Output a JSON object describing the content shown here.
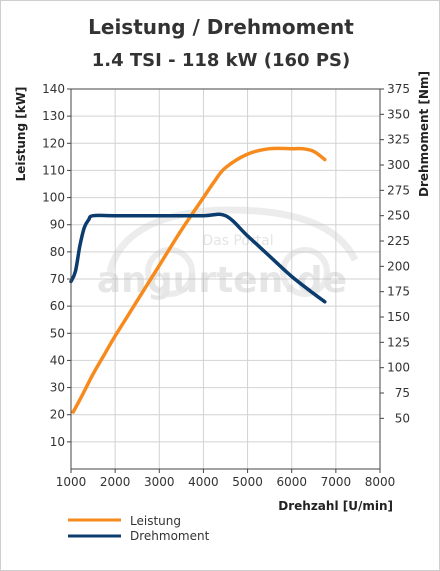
{
  "chart_data": {
    "type": "line",
    "title": "Leistung / Drehmoment",
    "subtitle": "1.4 TSI - 118 kW (160 PS)",
    "xlabel": "Drehzahl [U/min]",
    "ylabel_left": "Leistung [kW]",
    "ylabel_right": "Drehmoment [Nm]",
    "xlim": [
      1000,
      8000
    ],
    "ylim_left": [
      0,
      140
    ],
    "ylim_right": [
      0,
      375
    ],
    "x_ticks": [
      "1000",
      "2000",
      "3000",
      "4000",
      "5000",
      "6000",
      "7000",
      "8000"
    ],
    "y_left_ticks": [
      "10",
      "20",
      "30",
      "40",
      "50",
      "60",
      "70",
      "80",
      "90",
      "100",
      "110",
      "120",
      "130",
      "140"
    ],
    "y_right_ticks": [
      "50",
      "75",
      "100",
      "125",
      "150",
      "175",
      "200",
      "225",
      "250",
      "275",
      "300",
      "325",
      "350",
      "375"
    ],
    "grid": true,
    "legend_position": "bottom-left",
    "series": [
      {
        "name": "Leistung",
        "axis": "left",
        "color": "#f78a1d",
        "x": [
          1050,
          1250,
          1500,
          1750,
          2000,
          2500,
          3000,
          3500,
          4000,
          4250,
          4500,
          5000,
          5500,
          6000,
          6250,
          6500,
          6750
        ],
        "y": [
          21,
          27,
          35,
          42,
          49,
          62,
          75,
          88,
          100,
          106,
          111,
          116,
          118,
          118,
          118,
          117,
          114
        ]
      },
      {
        "name": "Drehmoment",
        "axis": "right",
        "color": "#0c3c6e",
        "x": [
          1000,
          1100,
          1200,
          1300,
          1400,
          1500,
          2000,
          3000,
          4000,
          4500,
          5000,
          5500,
          6000,
          6500,
          6750
        ],
        "y": [
          185,
          195,
          220,
          238,
          246,
          250,
          250,
          250,
          250,
          250,
          230,
          210,
          190,
          173,
          165
        ]
      }
    ]
  },
  "watermark": {
    "text_main": "angurten.de",
    "text_small": "Das Portal"
  }
}
